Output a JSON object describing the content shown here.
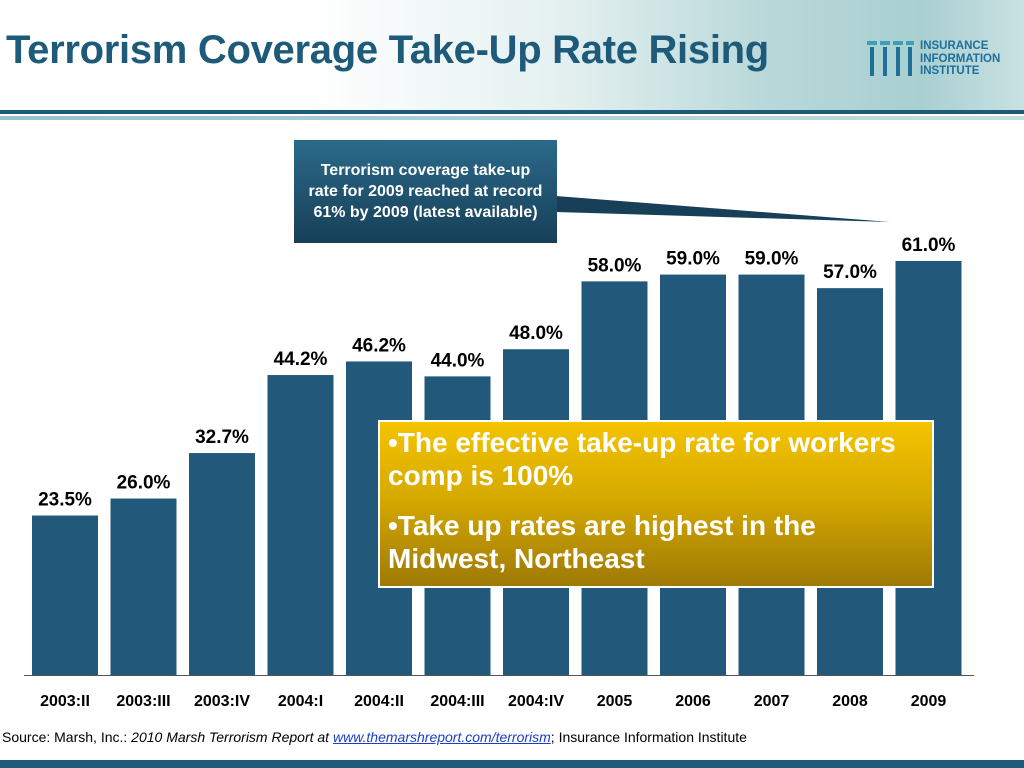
{
  "slide": {
    "title": "Terrorism Coverage Take-Up Rate Rising",
    "logo_lines": [
      "INSURANCE",
      "INFORMATION",
      "INSTITUTE"
    ]
  },
  "callout": {
    "text": "Terrorism coverage take-up rate for 2009 reached at record 61% by 2009 (latest available)"
  },
  "note_box": {
    "bullets": [
      "•The effective take-up rate for workers comp is 100%",
      "•Take up rates are highest in the Midwest, Northeast"
    ]
  },
  "source": {
    "prefix": "Source:  Marsh, Inc.: ",
    "report": "2010 Marsh Terrorism Report at ",
    "url": "www.themarshreport.com/terrorism",
    "suffix": "; Insurance Information Institute"
  },
  "colors": {
    "bar": "#22597a",
    "title": "#1e5b7a",
    "callout": "#1f4f6b",
    "note_box": "#e0b300",
    "link": "#1a3ec8"
  },
  "chart_data": {
    "type": "bar",
    "title": "",
    "xlabel": "",
    "ylabel": "",
    "categories": [
      "2003:II",
      "2003:III",
      "2003:IV",
      "2004:I",
      "2004:II",
      "2004:III",
      "2004:IV",
      "2005",
      "2006",
      "2007",
      "2008",
      "2009"
    ],
    "values": [
      23.5,
      26.0,
      32.7,
      44.2,
      46.2,
      44.0,
      48.0,
      58.0,
      59.0,
      59.0,
      57.0,
      61.0
    ],
    "value_labels": [
      "23.5%",
      "26.0%",
      "32.7%",
      "44.2%",
      "46.2%",
      "44.0%",
      "48.0%",
      "58.0%",
      "59.0%",
      "59.0%",
      "57.0%",
      "61.0%"
    ],
    "ylim": [
      0,
      61
    ],
    "grid": false,
    "legend": "none"
  }
}
